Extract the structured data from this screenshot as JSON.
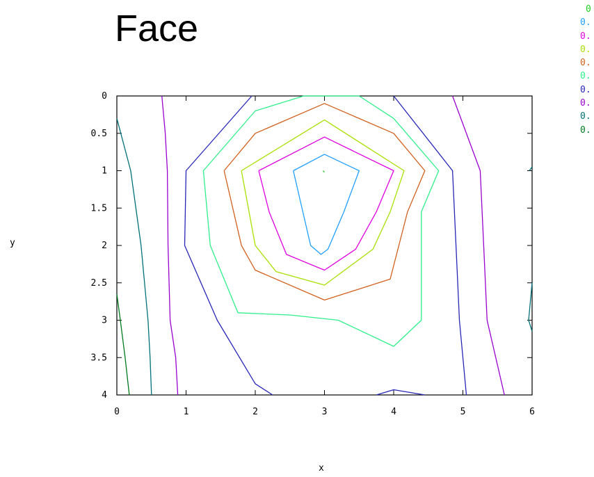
{
  "chart_data": {
    "type": "contour",
    "title": "Face",
    "xlabel": "x",
    "ylabel": "y",
    "xlim": [
      0,
      6
    ],
    "ylim": [
      0,
      4
    ],
    "y_inverted": true,
    "x_ticks": [
      "0",
      "1",
      "2",
      "3",
      "4",
      "5",
      "6"
    ],
    "y_ticks": [
      "0",
      "0.5",
      "1",
      "1.5",
      "2",
      "2.5",
      "3",
      "3.5",
      "4"
    ],
    "x_tick_values": [
      0,
      1,
      2,
      3,
      4,
      5,
      6
    ],
    "y_tick_values": [
      0,
      0.5,
      1,
      1.5,
      2,
      2.5,
      3,
      3.5,
      4
    ],
    "legend_position": "top-right",
    "legend": [
      {
        "label": "0",
        "color": "#22cc22"
      },
      {
        "label": "0.",
        "color": "#1f9fff"
      },
      {
        "label": "0.",
        "color": "#e000e0"
      },
      {
        "label": "0.",
        "color": "#a8e000"
      },
      {
        "label": "0.",
        "color": "#d2601e"
      },
      {
        "label": "0.",
        "color": "#2ef08a"
      },
      {
        "label": "0.",
        "color": "#2626b8"
      },
      {
        "label": "0.",
        "color": "#9a00d0"
      },
      {
        "label": "0.",
        "color": "#00707a"
      },
      {
        "label": "0.",
        "color": "#007a1f"
      }
    ],
    "series": [
      {
        "color": "#22cc22",
        "points": [
          [
            2.98,
            1.0
          ],
          [
            3.0,
            1.02
          ]
        ]
      },
      {
        "color": "#1f9fff",
        "points": [
          [
            2.55,
            1.0
          ],
          [
            3.0,
            0.78
          ],
          [
            3.5,
            1.0
          ],
          [
            3.28,
            1.55
          ],
          [
            3.05,
            2.05
          ],
          [
            2.95,
            2.12
          ],
          [
            2.8,
            2.0
          ],
          [
            2.55,
            1.0
          ]
        ]
      },
      {
        "color": "#e000e0",
        "points": [
          [
            2.05,
            1.0
          ],
          [
            3.0,
            0.55
          ],
          [
            4.0,
            1.0
          ],
          [
            3.75,
            1.55
          ],
          [
            3.45,
            2.05
          ],
          [
            3.0,
            2.33
          ],
          [
            2.45,
            2.12
          ],
          [
            2.2,
            1.55
          ],
          [
            2.05,
            1.0
          ]
        ]
      },
      {
        "color": "#a8e000",
        "points": [
          [
            1.8,
            1.0
          ],
          [
            3.0,
            0.32
          ],
          [
            4.15,
            1.0
          ],
          [
            3.95,
            1.55
          ],
          [
            3.7,
            2.05
          ],
          [
            3.0,
            2.53
          ],
          [
            2.3,
            2.35
          ],
          [
            2.0,
            2.0
          ],
          [
            1.8,
            1.0
          ]
        ]
      },
      {
        "color": "#d2601e",
        "points": [
          [
            1.55,
            1.0
          ],
          [
            2.0,
            0.5
          ],
          [
            3.0,
            0.1
          ],
          [
            4.0,
            0.5
          ],
          [
            4.45,
            1.0
          ],
          [
            4.2,
            1.55
          ],
          [
            3.95,
            2.45
          ],
          [
            3.0,
            2.73
          ],
          [
            2.0,
            2.33
          ],
          [
            1.8,
            2.0
          ],
          [
            1.55,
            1.0
          ]
        ]
      },
      {
        "color": "#2ef08a",
        "points": [
          [
            1.25,
            1.0
          ],
          [
            2.0,
            0.2
          ],
          [
            2.7,
            0.0
          ],
          [
            3.5,
            0.0
          ],
          [
            4.0,
            0.3
          ],
          [
            4.65,
            1.0
          ],
          [
            4.4,
            1.55
          ],
          [
            4.4,
            3.0
          ],
          [
            4.0,
            3.35
          ],
          [
            3.2,
            3.0
          ],
          [
            2.5,
            2.93
          ],
          [
            1.75,
            2.9
          ],
          [
            1.35,
            2.0
          ],
          [
            1.25,
            1.0
          ]
        ]
      },
      {
        "color": "#2626b8",
        "points": [
          [
            1.95,
            0.0
          ],
          [
            1.0,
            1.0
          ],
          [
            0.98,
            2.0
          ],
          [
            1.45,
            3.0
          ],
          [
            2.0,
            3.85
          ],
          [
            2.25,
            4.0
          ]
        ]
      },
      {
        "color": "#2626b8",
        "points": [
          [
            4.0,
            0.0
          ],
          [
            4.85,
            1.0
          ],
          [
            4.9,
            2.0
          ],
          [
            4.95,
            3.0
          ],
          [
            5.05,
            4.0
          ]
        ]
      },
      {
        "color": "#2626b8",
        "points": [
          [
            3.75,
            4.0
          ],
          [
            4.0,
            3.93
          ],
          [
            4.45,
            4.0
          ]
        ]
      },
      {
        "color": "#9a00d0",
        "points": [
          [
            0.65,
            0.0
          ],
          [
            0.7,
            0.5
          ],
          [
            0.73,
            1.0
          ],
          [
            0.74,
            2.0
          ],
          [
            0.77,
            3.0
          ],
          [
            0.85,
            3.5
          ],
          [
            0.88,
            4.0
          ]
        ]
      },
      {
        "color": "#9a00d0",
        "points": [
          [
            4.85,
            0.0
          ],
          [
            5.25,
            1.0
          ],
          [
            5.3,
            2.0
          ],
          [
            5.35,
            3.0
          ],
          [
            5.6,
            4.0
          ]
        ]
      },
      {
        "color": "#00707a",
        "points": [
          [
            0.0,
            0.3
          ],
          [
            0.2,
            1.0
          ],
          [
            0.35,
            2.0
          ],
          [
            0.45,
            3.0
          ],
          [
            0.48,
            3.5
          ],
          [
            0.5,
            4.0
          ]
        ]
      },
      {
        "color": "#00707a",
        "points": [
          [
            6.0,
            0.95
          ],
          [
            5.96,
            1.0
          ]
        ]
      },
      {
        "color": "#00707a",
        "points": [
          [
            6.0,
            2.5
          ],
          [
            5.95,
            3.0
          ],
          [
            6.0,
            3.15
          ]
        ]
      },
      {
        "color": "#007a1f",
        "points": [
          [
            0.0,
            2.65
          ],
          [
            0.05,
            3.0
          ],
          [
            0.12,
            3.5
          ],
          [
            0.18,
            4.0
          ]
        ]
      }
    ]
  }
}
